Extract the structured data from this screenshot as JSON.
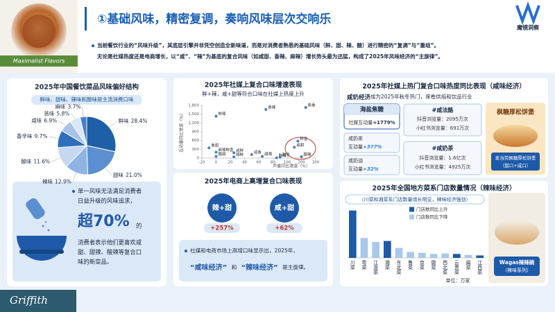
{
  "header": {
    "title": "①基础风味，精密复调，奏响风味层次交响乐",
    "brand": "魔镜洞察",
    "image_caption": "Maximalist Flavors",
    "bullets": [
      "当前餐饮行业的“风味升级”，其底层引擎并非凭空创造全新味道，而是对消费者熟悉的基础风味（鲜、甜、辣、酸）进行精密的“复调”与“重组”。",
      "无论是社媒热度还是电商增长，以“咸”、“辣”为基底的复合风味（如咸甜、香辣、麻辣）增长势头最为迅猛，构成了2025年风味经济的“主旋律”。"
    ]
  },
  "panel_flavor": {
    "callout_lines_top": [
      "单一风味无法满足消费者",
      "日益升级的风味追求，"
    ],
    "highlight": "超70%",
    "highlight_suffix": "的",
    "callout_lines_bottom": [
      "消费者表示他们更喜欢咸",
      "甜、甜辣、酸辣等复合口",
      "味的新菜品。"
    ]
  },
  "panel_ecommerce": {
    "title": "2025年电商上高增复合口味表现",
    "items": [
      {
        "name": "辣+甜",
        "growth": "+257%"
      },
      {
        "name": "咸+甜",
        "growth": "+62%"
      }
    ],
    "note_line1": "社媒和电商市场上高增口味显示出，2025年，",
    "note_parts": [
      "“咸味经济”",
      "和",
      "“辣味经济”",
      "是主旋律。"
    ]
  },
  "panel_salty": {
    "title": "2025年社媒上热门复合口味热度同比表现（咸味经济）",
    "subtitle_bold": "咸奶经济",
    "subtitle": "成为2025年秋冬热门，席卷烘焙和饮品行业",
    "cards": [
      {
        "name": "海盐焦糖",
        "metric": "社媒互动量",
        "growth": "+1779%"
      },
      {
        "name": "咸奶茶",
        "metric": "互动量",
        "growth": "+377%"
      },
      {
        "name": "咸奶油",
        "metric": "互动量",
        "growth": "+32%"
      }
    ],
    "topics": [
      {
        "tag": "#咸法酪",
        "lines": [
          "抖音浏览量：2095万次",
          "小红书浏览量：691万次"
        ]
      },
      {
        "tag": "#咸奶茶",
        "lines": [
          "抖音浏览量：1.6亿次",
          "小红书浏览量：4925万次"
        ]
      }
    ],
    "image_text": "枫糖厚松饼堡",
    "image_caption": [
      "麦当劳枫糖厚松饼堡",
      "（甜口+咸口）"
    ]
  },
  "panel_spicy_image": {
    "caption": [
      "Wagas辣辣碗",
      "（辣味系列）"
    ]
  },
  "footer": {
    "brand": "Griffith"
  },
  "chart_data": [
    {
      "type": "pie",
      "title": "2025年中国餐饮菜品风味偏好结构",
      "subtitle": "鲜味、甜味、辣味和酸味是主流消费口味",
      "categories": [
        "鲜味",
        "甜味",
        "辣味",
        "酸味",
        "香辛味",
        "咸味",
        "苦味",
        "麻味"
      ],
      "values": [
        28.4,
        21.0,
        12.9,
        11.6,
        9.7,
        6.9,
        5.8,
        3.7
      ],
      "value_labels": [
        "28.4%",
        "21.0%",
        "12.9%",
        "11.6%",
        "9.7%",
        "6.9%",
        "5.8%",
        "3.7%"
      ],
      "colors": [
        "#1f5fa8",
        "#5b8fd0",
        "#8fb4e3",
        "#c5d8ef",
        "#2f6fba",
        "#a6c4e8",
        "#d9e6f5",
        "#4a7fc4"
      ]
    },
    {
      "type": "scatter",
      "title": "2025年社媒上复合口味增速表现",
      "subtitle": "鲜+辣，咸+甜等符合口味在社媒上热度上升",
      "x_label": "声量同比增速（%）",
      "y_label": "互动量同比增速（%）",
      "labels": [
        "鲜辣",
        "香辣",
        "焦香",
        "鲜香",
        "咸甜",
        "酸辣",
        "香甜",
        "麻辣鲜香",
        "咸鲜",
        "酸甜",
        "辣鲜",
        "咸香",
        "甜辣",
        "甜香",
        "鲜甜"
      ],
      "x": [
        0,
        70,
        230,
        175,
        150,
        200,
        -10,
        0,
        25,
        0,
        25,
        50,
        65,
        90,
        85
      ],
      "values": [
        1430,
        1660,
        1730,
        580,
        370,
        50,
        350,
        200,
        180,
        60,
        40,
        120,
        60,
        30,
        10
      ],
      "color": "#4a7fc4",
      "xlim": [
        -20,
        300
      ],
      "xticks": [
        -20,
        0,
        20,
        40,
        60,
        80,
        100,
        200,
        300
      ],
      "ylim": [
        0,
        1800
      ],
      "yticks": [
        0,
        300,
        600,
        900,
        {
          "value": 1200,
          "label": "1,200"
        },
        {
          "value": 1500,
          "label": "1,500"
        },
        {
          "value": 1800,
          "label": "1,800"
        }
      ]
    },
    {
      "type": "bar",
      "title": "2025年全国地方菜系门店数量情况（辣味经济）",
      "subtitle": "（川菜和湘菜系门店数量增长明显，辣味经济强劲）",
      "unit": "单位：万家",
      "categories": [
        "川菜",
        "粤菜",
        "江浙菜",
        "湘菜",
        "东北菜",
        "鲁菜",
        "京菜",
        "徽菜",
        "西北菜",
        "云贵菜",
        "闽菜",
        "江西菜"
      ],
      "series": [
        {
          "name": "门店数同比上升",
          "color": "#1e5aa8",
          "values": [
            9.5,
            null,
            null,
            3.4,
            null,
            null,
            null,
            null,
            null,
            0.8,
            null,
            0.5
          ]
        },
        {
          "name": "门店数同比下降",
          "color": "#a9c8ec",
          "values": [
            null,
            4.0,
            3.2,
            null,
            2.0,
            1.2,
            1.0,
            0.8,
            0.9,
            null,
            0.6,
            null
          ]
        }
      ],
      "ylim": [
        0,
        10
      ]
    }
  ]
}
